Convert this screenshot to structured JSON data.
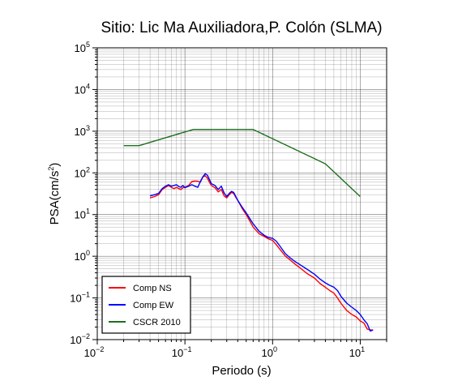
{
  "chart_data": {
    "type": "line",
    "title": "Sitio: Lic Ma Auxiliadora,P. Colón (SLMA)",
    "xlabel": "Periodo (s)",
    "ylabel_base": "PSA(cm/s",
    "ylabel_sup": "2",
    "ylabel_close": ")",
    "x_scale": "log",
    "y_scale": "log",
    "xlim": [
      0.01,
      20
    ],
    "ylim": [
      0.01,
      100000
    ],
    "grid": true,
    "legend_position": "bottom-left",
    "x_ticks": [
      {
        "value": 0.01,
        "base": "10",
        "exp": "−2"
      },
      {
        "value": 0.1,
        "base": "10",
        "exp": "−1"
      },
      {
        "value": 1,
        "base": "10",
        "exp": "0"
      },
      {
        "value": 10,
        "base": "10",
        "exp": "1"
      }
    ],
    "y_ticks": [
      {
        "value": 0.01,
        "base": "10",
        "exp": "−2"
      },
      {
        "value": 0.1,
        "base": "10",
        "exp": "−1"
      },
      {
        "value": 1,
        "base": "10",
        "exp": "0"
      },
      {
        "value": 10,
        "base": "10",
        "exp": "1"
      },
      {
        "value": 100,
        "base": "10",
        "exp": "2"
      },
      {
        "value": 1000,
        "base": "10",
        "exp": "3"
      },
      {
        "value": 10000,
        "base": "10",
        "exp": "4"
      },
      {
        "value": 100000,
        "base": "10",
        "exp": "5"
      }
    ],
    "series": [
      {
        "name": "Comp NS",
        "color": "#ff0000",
        "x": [
          0.04,
          0.045,
          0.05,
          0.055,
          0.06,
          0.065,
          0.07,
          0.075,
          0.08,
          0.085,
          0.09,
          0.095,
          0.1,
          0.11,
          0.12,
          0.13,
          0.14,
          0.15,
          0.16,
          0.17,
          0.18,
          0.19,
          0.2,
          0.22,
          0.24,
          0.26,
          0.28,
          0.3,
          0.32,
          0.34,
          0.36,
          0.38,
          0.4,
          0.45,
          0.5,
          0.55,
          0.6,
          0.7,
          0.8,
          0.9,
          1.0,
          1.1,
          1.2,
          1.4,
          1.6,
          1.8,
          2.0,
          2.5,
          3.0,
          3.5,
          4.0,
          4.5,
          5.0,
          5.5,
          6.0,
          7.0,
          8.0,
          9.0,
          10.0,
          11.0,
          12.0,
          13.0,
          14.0
        ],
        "y": [
          25,
          27,
          30,
          40,
          45,
          50,
          45,
          42,
          45,
          42,
          40,
          44,
          45,
          50,
          62,
          64,
          63,
          60,
          80,
          85,
          75,
          60,
          50,
          44,
          35,
          40,
          28,
          25,
          30,
          34,
          32,
          26,
          22,
          14,
          10,
          7,
          5,
          3.5,
          3,
          2.6,
          2.4,
          1.9,
          1.5,
          1.0,
          0.8,
          0.65,
          0.55,
          0.38,
          0.3,
          0.22,
          0.18,
          0.15,
          0.13,
          0.1,
          0.075,
          0.05,
          0.04,
          0.035,
          0.028,
          0.025,
          0.018,
          0.017,
          0.017
        ]
      },
      {
        "name": "Comp EW",
        "color": "#0000ff",
        "x": [
          0.04,
          0.045,
          0.05,
          0.055,
          0.06,
          0.065,
          0.07,
          0.075,
          0.08,
          0.085,
          0.09,
          0.095,
          0.1,
          0.11,
          0.12,
          0.13,
          0.14,
          0.15,
          0.16,
          0.17,
          0.18,
          0.19,
          0.2,
          0.22,
          0.24,
          0.26,
          0.28,
          0.3,
          0.32,
          0.34,
          0.36,
          0.38,
          0.4,
          0.45,
          0.5,
          0.55,
          0.6,
          0.7,
          0.8,
          0.9,
          1.0,
          1.1,
          1.2,
          1.4,
          1.6,
          1.8,
          2.0,
          2.5,
          3.0,
          3.5,
          4.0,
          4.5,
          5.0,
          5.5,
          6.0,
          7.0,
          8.0,
          9.0,
          10.0,
          11.0,
          12.0,
          13.0,
          14.0
        ],
        "y": [
          28,
          30,
          32,
          42,
          48,
          52,
          48,
          50,
          52,
          47,
          45,
          50,
          44,
          48,
          52,
          48,
          45,
          62,
          80,
          95,
          88,
          70,
          55,
          50,
          40,
          48,
          33,
          27,
          32,
          36,
          34,
          27,
          22,
          15,
          11,
          8,
          6,
          4,
          3.2,
          2.8,
          2.7,
          2.3,
          1.8,
          1.15,
          0.9,
          0.75,
          0.65,
          0.48,
          0.37,
          0.28,
          0.23,
          0.2,
          0.18,
          0.15,
          0.11,
          0.075,
          0.06,
          0.05,
          0.04,
          0.03,
          0.024,
          0.016,
          0.017
        ]
      },
      {
        "name": "CSCR 2010",
        "color": "#1f6e1f",
        "x": [
          0.02,
          0.03,
          0.125,
          0.6,
          4.0,
          10.0
        ],
        "y": [
          450,
          450,
          1100,
          1100,
          165,
          27
        ]
      }
    ]
  }
}
